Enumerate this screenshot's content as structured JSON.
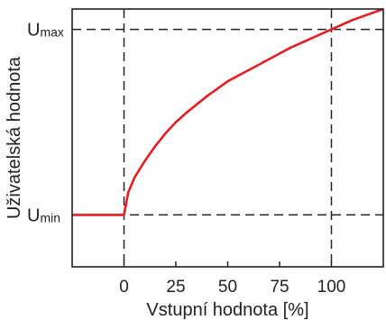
{
  "chart_data": {
    "type": "line",
    "xlabel": "Vstupní hodnota [%]",
    "ylabel": "Uživatelská hodnota",
    "xlim": [
      -25,
      125
    ],
    "ylim": [
      -0.28,
      1.11
    ],
    "x_ticks": [
      {
        "value": 0,
        "label": "0"
      },
      {
        "value": 25,
        "label": "25"
      },
      {
        "value": 50,
        "label": "50"
      },
      {
        "value": 75,
        "label": "75"
      },
      {
        "value": 100,
        "label": "100"
      }
    ],
    "reference_lines": {
      "vertical": [
        0,
        100
      ],
      "horizontal": [
        {
          "value": 0,
          "label": "U",
          "sub": "min"
        },
        {
          "value": 1,
          "label": "U",
          "sub": "max"
        }
      ]
    },
    "series": [
      {
        "color": "#e31e24",
        "points": [
          [
            -25,
            0
          ],
          [
            0,
            0
          ],
          [
            2,
            0.12
          ],
          [
            5,
            0.2
          ],
          [
            10,
            0.29
          ],
          [
            15,
            0.37
          ],
          [
            20,
            0.44
          ],
          [
            25,
            0.5
          ],
          [
            30,
            0.55
          ],
          [
            40,
            0.64
          ],
          [
            50,
            0.72
          ],
          [
            60,
            0.78
          ],
          [
            70,
            0.84
          ],
          [
            75,
            0.87
          ],
          [
            80,
            0.9
          ],
          [
            90,
            0.95
          ],
          [
            100,
            1.0
          ],
          [
            110,
            1.05
          ],
          [
            125,
            1.11
          ]
        ]
      }
    ],
    "grid": false,
    "legend": "none"
  }
}
